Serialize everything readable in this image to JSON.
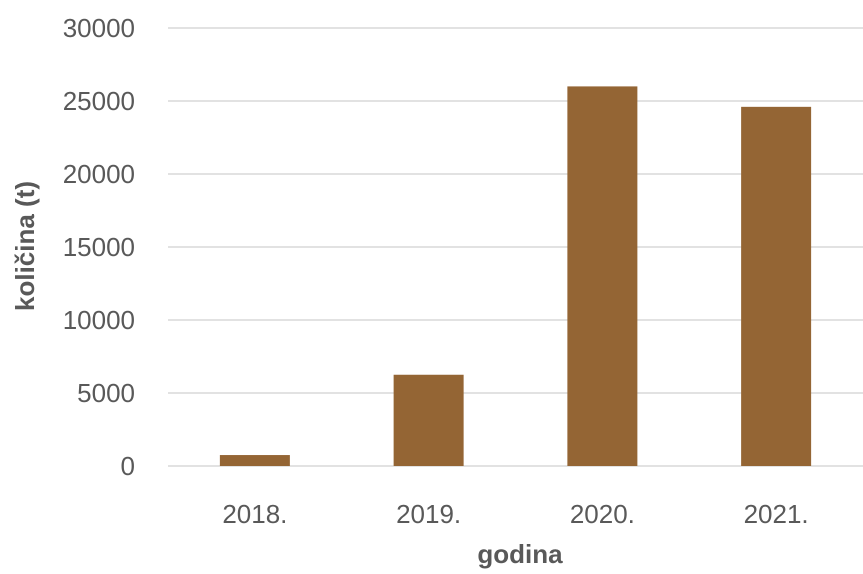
{
  "chart_data": {
    "type": "bar",
    "categories": [
      "2018.",
      "2019.",
      "2020.",
      "2021."
    ],
    "values": [
      750,
      6250,
      26000,
      24600
    ],
    "xlabel": "godina",
    "ylabel": "količina (t)",
    "ylim": [
      0,
      30000
    ],
    "yticks": [
      "0",
      "5000",
      "10000",
      "15000",
      "20000",
      "25000",
      "30000"
    ],
    "grid": true,
    "legend": "none",
    "bar_color": "#946534",
    "grid_color": "#d9d9d9",
    "text_color": "#595959"
  }
}
